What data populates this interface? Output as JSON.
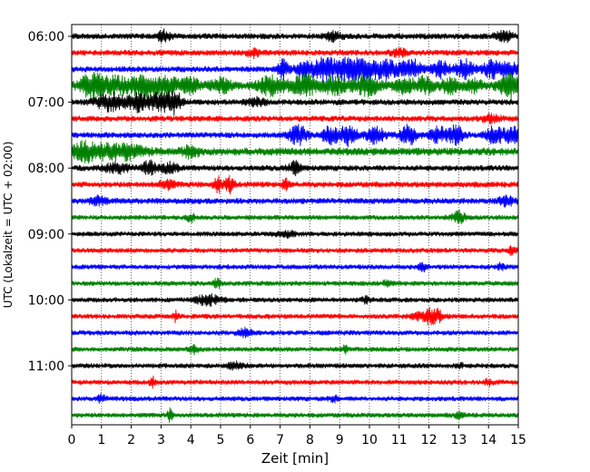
{
  "chart_data": {
    "type": "line",
    "title": "",
    "xlabel": "Zeit  [min]",
    "ylabel": "UTC (Lokalzeit = UTC + 02:00)",
    "xlim": [
      0,
      15
    ],
    "x_ticks": [
      "0",
      "1",
      "2",
      "3",
      "4",
      "5",
      "6",
      "7",
      "8",
      "9",
      "10",
      "11",
      "12",
      "13",
      "14",
      "15"
    ],
    "y_tick_labels": [
      "06:00",
      "07:00",
      "08:00",
      "09:00",
      "10:00",
      "11:00"
    ],
    "row_interval_min": 15,
    "trace_color_cycle": [
      "#000000",
      "#ff0000",
      "#0000ff",
      "#008000"
    ],
    "grid": "vertical dotted",
    "traces": [
      {
        "start": "06:00",
        "baseline": 3,
        "events": [
          [
            3.1,
            6,
            0.15
          ],
          [
            8.8,
            4,
            0.2
          ],
          [
            14.5,
            6,
            0.2
          ]
        ]
      },
      {
        "start": "06:15",
        "baseline": 3,
        "events": [
          [
            6.1,
            4,
            0.15
          ],
          [
            11.0,
            3,
            0.2
          ]
        ]
      },
      {
        "start": "06:30",
        "baseline": 3,
        "events": [
          [
            7.1,
            10,
            0.12
          ],
          [
            7.8,
            9,
            0.2
          ],
          [
            8.5,
            12,
            0.25
          ],
          [
            9.2,
            10,
            0.3
          ],
          [
            9.9,
            12,
            0.3
          ],
          [
            10.6,
            9,
            0.25
          ],
          [
            11.4,
            10,
            0.25
          ],
          [
            12.4,
            8,
            0.2
          ],
          [
            13.2,
            10,
            0.2
          ],
          [
            14.1,
            9,
            0.2
          ],
          [
            14.7,
            8,
            0.2
          ]
        ]
      },
      {
        "start": "06:45",
        "baseline": 4,
        "events": [
          [
            0.7,
            12,
            0.3
          ],
          [
            1.5,
            8,
            0.3
          ],
          [
            2.4,
            10,
            0.3
          ],
          [
            3.2,
            8,
            0.3
          ],
          [
            4.0,
            7,
            0.2
          ],
          [
            5.0,
            7,
            0.25
          ],
          [
            6.7,
            9,
            0.3
          ],
          [
            7.8,
            10,
            0.3
          ],
          [
            8.8,
            8,
            0.3
          ],
          [
            9.9,
            9,
            0.3
          ],
          [
            11.2,
            7,
            0.25
          ],
          [
            11.9,
            9,
            0.2
          ],
          [
            12.7,
            7,
            0.2
          ],
          [
            13.5,
            6,
            0.2
          ],
          [
            14.8,
            12,
            0.3
          ]
        ]
      },
      {
        "start": "07:00",
        "baseline": 3,
        "events": [
          [
            1.3,
            9,
            0.35
          ],
          [
            2.2,
            9,
            0.2
          ],
          [
            3.0,
            10,
            0.3
          ],
          [
            3.5,
            9,
            0.15
          ],
          [
            6.2,
            4,
            0.2
          ]
        ]
      },
      {
        "start": "07:15",
        "baseline": 3,
        "events": [
          [
            14.1,
            4,
            0.2
          ]
        ]
      },
      {
        "start": "07:30",
        "baseline": 3,
        "events": [
          [
            7.6,
            10,
            0.2
          ],
          [
            8.7,
            9,
            0.2
          ],
          [
            9.3,
            10,
            0.2
          ],
          [
            10.2,
            9,
            0.2
          ],
          [
            11.3,
            10,
            0.2
          ],
          [
            12.3,
            8,
            0.2
          ],
          [
            12.9,
            9,
            0.2
          ],
          [
            14.2,
            9,
            0.2
          ],
          [
            14.8,
            8,
            0.2
          ]
        ]
      },
      {
        "start": "07:45",
        "baseline": 4,
        "events": [
          [
            0.5,
            9,
            0.4
          ],
          [
            1.7,
            7,
            0.5
          ],
          [
            4.0,
            5,
            0.2
          ]
        ]
      },
      {
        "start": "08:00",
        "baseline": 3,
        "events": [
          [
            1.5,
            5,
            0.3
          ],
          [
            2.6,
            7,
            0.15
          ],
          [
            3.3,
            5,
            0.2
          ],
          [
            7.5,
            6,
            0.15
          ]
        ]
      },
      {
        "start": "08:15",
        "baseline": 3,
        "events": [
          [
            3.2,
            4,
            0.2
          ],
          [
            4.9,
            8,
            0.1
          ],
          [
            5.3,
            9,
            0.1
          ],
          [
            7.2,
            5,
            0.1
          ]
        ]
      },
      {
        "start": "08:30",
        "baseline": 3,
        "events": [
          [
            0.9,
            4,
            0.2
          ],
          [
            14.6,
            4,
            0.2
          ]
        ]
      },
      {
        "start": "08:45",
        "baseline": 2.5,
        "events": [
          [
            4.0,
            4,
            0.1
          ],
          [
            13.0,
            6,
            0.15
          ]
        ]
      },
      {
        "start": "09:00",
        "baseline": 2.5,
        "events": [
          [
            7.2,
            3,
            0.2
          ]
        ]
      },
      {
        "start": "09:15",
        "baseline": 2.5,
        "events": [
          [
            14.8,
            4,
            0.1
          ]
        ]
      },
      {
        "start": "09:30",
        "baseline": 2.5,
        "events": [
          [
            11.8,
            4,
            0.1
          ],
          [
            14.4,
            3,
            0.1
          ]
        ]
      },
      {
        "start": "09:45",
        "baseline": 2.5,
        "events": [
          [
            4.9,
            5,
            0.1
          ],
          [
            10.6,
            3,
            0.1
          ]
        ]
      },
      {
        "start": "10:00",
        "baseline": 2.5,
        "events": [
          [
            4.6,
            5,
            0.3
          ],
          [
            9.9,
            3,
            0.1
          ]
        ]
      },
      {
        "start": "10:15",
        "baseline": 2.5,
        "events": [
          [
            3.5,
            6,
            0.06
          ],
          [
            11.9,
            5,
            0.3
          ],
          [
            12.2,
            5,
            0.2
          ]
        ]
      },
      {
        "start": "10:30",
        "baseline": 2.5,
        "events": [
          [
            5.8,
            5,
            0.15
          ]
        ]
      },
      {
        "start": "10:45",
        "baseline": 2.5,
        "events": [
          [
            4.1,
            4,
            0.1
          ],
          [
            9.2,
            6,
            0.05
          ]
        ]
      },
      {
        "start": "11:00",
        "baseline": 2.5,
        "events": [
          [
            5.5,
            3,
            0.2
          ],
          [
            13.0,
            3,
            0.1
          ]
        ]
      },
      {
        "start": "11:15",
        "baseline": 2.5,
        "events": [
          [
            2.7,
            6,
            0.06
          ],
          [
            14.0,
            3,
            0.1
          ]
        ]
      },
      {
        "start": "11:30",
        "baseline": 2.5,
        "events": [
          [
            1.0,
            4,
            0.1
          ],
          [
            8.8,
            3,
            0.1
          ]
        ]
      },
      {
        "start": "11:45",
        "baseline": 2.5,
        "events": [
          [
            3.3,
            6,
            0.06
          ],
          [
            13.0,
            3,
            0.1
          ]
        ]
      }
    ]
  }
}
